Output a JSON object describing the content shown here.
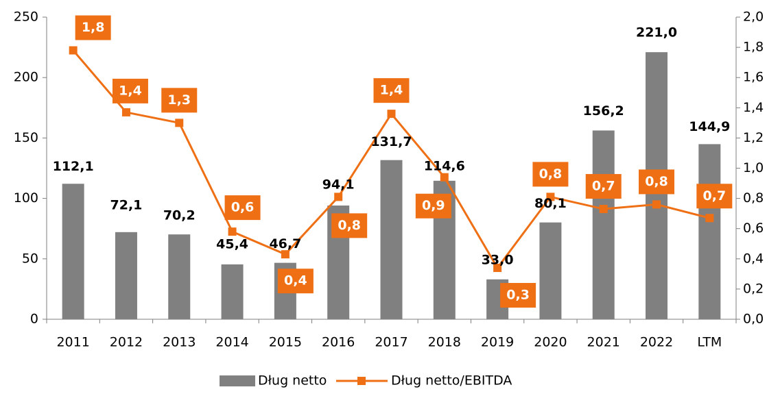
{
  "chart_data": {
    "type": "bar",
    "categories": [
      "2011",
      "2012",
      "2013",
      "2014",
      "2015",
      "2016",
      "2017",
      "2018",
      "2019",
      "2020",
      "2021",
      "2022",
      "LTM"
    ],
    "series": [
      {
        "name": "Dług netto",
        "type": "bar",
        "color": "#808080",
        "values": [
          112.1,
          72.1,
          70.2,
          45.4,
          46.7,
          94.1,
          131.7,
          114.6,
          33.0,
          80.1,
          156.2,
          221.0,
          144.9
        ],
        "value_labels": [
          "112,1",
          "72,1",
          "70,2",
          "45,4",
          "46,7",
          "94,1",
          "131,7",
          "114,6",
          "33,0",
          "80,1",
          "156,2",
          "221,0",
          "144,9"
        ]
      },
      {
        "name": "Dług netto/EBITDA",
        "type": "line",
        "axis": "y2",
        "color": "#ef6f14",
        "values": [
          1.78,
          1.37,
          1.3,
          0.58,
          0.43,
          0.81,
          1.36,
          0.94,
          0.34,
          0.81,
          0.73,
          0.76,
          0.67
        ],
        "value_labels": [
          "1,8",
          "1,4",
          "1,3",
          "0,6",
          "0,4",
          "0,8",
          "1,4",
          "0,9",
          "0,3",
          "0,8",
          "0,7",
          "0,8",
          "0,7"
        ]
      }
    ],
    "ylim": [
      0,
      250
    ],
    "yticks": [
      0,
      50,
      100,
      150,
      200,
      250
    ],
    "y2lim": [
      0,
      2
    ],
    "y2ticks": [
      {
        "value": 0,
        "label": "0,0"
      },
      {
        "value": 0.2,
        "label": "0,2"
      },
      {
        "value": 0.4,
        "label": "0,4"
      },
      {
        "value": 0.6,
        "label": "0,6"
      },
      {
        "value": 0.8,
        "label": "0,8"
      },
      {
        "value": 1.0,
        "label": "1,0"
      },
      {
        "value": 1.2,
        "label": "1,2"
      },
      {
        "value": 1.4,
        "label": "1,4"
      },
      {
        "value": 1.6,
        "label": "1,6"
      },
      {
        "value": 1.8,
        "label": "1,8"
      },
      {
        "value": 2.0,
        "label": "2,0"
      }
    ],
    "legend": "bottom",
    "grid": false
  }
}
